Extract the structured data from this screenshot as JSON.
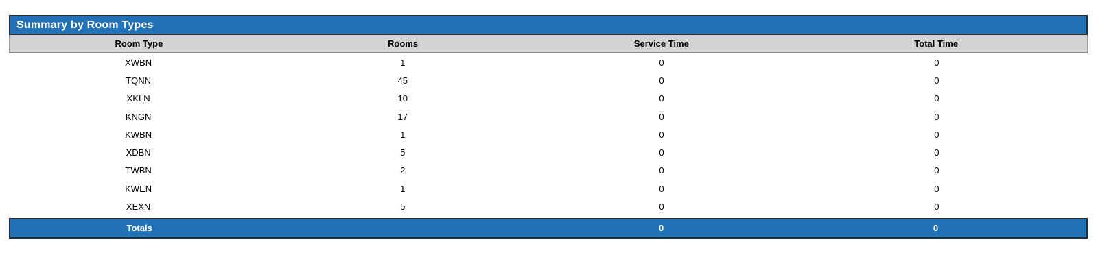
{
  "report": {
    "title": "Summary by Room Types",
    "columns": [
      "Room Type",
      "Rooms",
      "Service Time",
      "Total Time"
    ],
    "rows": [
      [
        "XWBN",
        "1",
        "0",
        "0"
      ],
      [
        "TQNN",
        "45",
        "0",
        "0"
      ],
      [
        "XKLN",
        "10",
        "0",
        "0"
      ],
      [
        "KNGN",
        "17",
        "0",
        "0"
      ],
      [
        "KWBN",
        "1",
        "0",
        "0"
      ],
      [
        "XDBN",
        "5",
        "0",
        "0"
      ],
      [
        "TWBN",
        "2",
        "0",
        "0"
      ],
      [
        "KWEN",
        "1",
        "0",
        "0"
      ],
      [
        "XEXN",
        "5",
        "0",
        "0"
      ]
    ],
    "totals_row": [
      "Totals",
      "",
      "0",
      "0"
    ],
    "colors": {
      "accent_blue": "#2272b8",
      "bar_border": "#1c2e40",
      "header_gray": "#d4d4d4",
      "title_text": "#ffffff",
      "body_text": "#000000"
    }
  },
  "chart_data": {
    "type": "table",
    "title": "Summary by Room Types",
    "columns": [
      "Room Type",
      "Rooms",
      "Service Time",
      "Total Time"
    ],
    "rows": [
      {
        "room_type": "XWBN",
        "rooms": 1,
        "service_time": 0,
        "total_time": 0
      },
      {
        "room_type": "TQNN",
        "rooms": 45,
        "service_time": 0,
        "total_time": 0
      },
      {
        "room_type": "XKLN",
        "rooms": 10,
        "service_time": 0,
        "total_time": 0
      },
      {
        "room_type": "KNGN",
        "rooms": 17,
        "service_time": 0,
        "total_time": 0
      },
      {
        "room_type": "KWBN",
        "rooms": 1,
        "service_time": 0,
        "total_time": 0
      },
      {
        "room_type": "XDBN",
        "rooms": 5,
        "service_time": 0,
        "total_time": 0
      },
      {
        "room_type": "TWBN",
        "rooms": 2,
        "service_time": 0,
        "total_time": 0
      },
      {
        "room_type": "KWEN",
        "rooms": 1,
        "service_time": 0,
        "total_time": 0
      },
      {
        "room_type": "XEXN",
        "rooms": 5,
        "service_time": 0,
        "total_time": 0
      }
    ],
    "totals": {
      "label": "Totals",
      "rooms": null,
      "service_time": 0,
      "total_time": 0
    }
  }
}
